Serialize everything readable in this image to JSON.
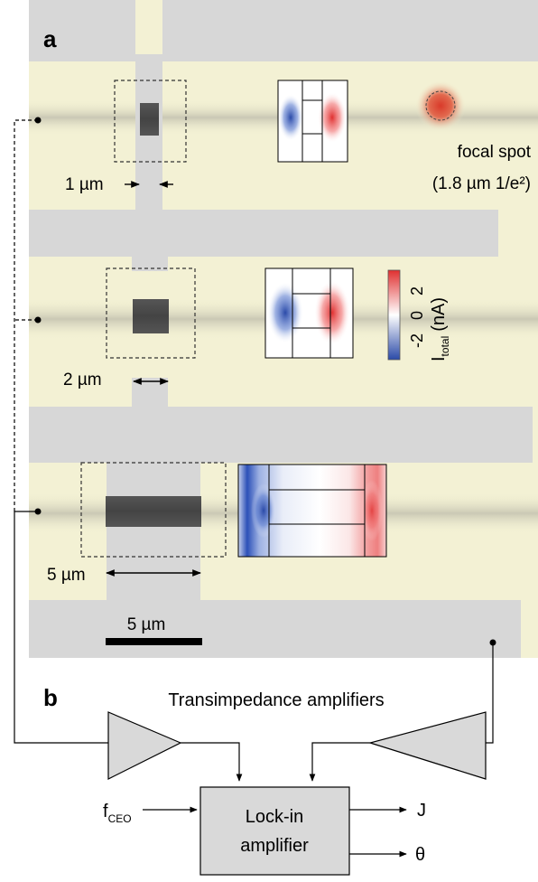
{
  "panel_a": {
    "label": "a",
    "devices": [
      {
        "gap_label": "1 µm"
      },
      {
        "gap_label": "2 µm"
      },
      {
        "gap_label": "5 µm"
      }
    ],
    "focal_spot": {
      "line1": "focal spot",
      "line2": "(1.8 µm 1/e²)"
    },
    "colorbar": {
      "label_main": "I",
      "label_sub": "total",
      "unit": "(nA)",
      "ticks": [
        "2",
        "0",
        "-2"
      ],
      "range": [
        -2.5,
        2.5
      ],
      "colors": {
        "negative": "#2b4aa8",
        "zero": "#ffffff",
        "positive": "#e03030"
      }
    },
    "scale_bar": {
      "label": "5 µm"
    },
    "colors": {
      "substrate": "#f3f1d4",
      "electrode": "#d7d7d7"
    }
  },
  "panel_b": {
    "label": "b",
    "amplifier_title": "Transimpedance amplifiers",
    "lockin": {
      "line1": "Lock-in",
      "line2": "amplifier"
    },
    "input": {
      "main": "f",
      "sub": "CEO"
    },
    "outputs": [
      "J",
      "θ"
    ],
    "colors": {
      "box_fill": "#d9d9d9"
    }
  }
}
